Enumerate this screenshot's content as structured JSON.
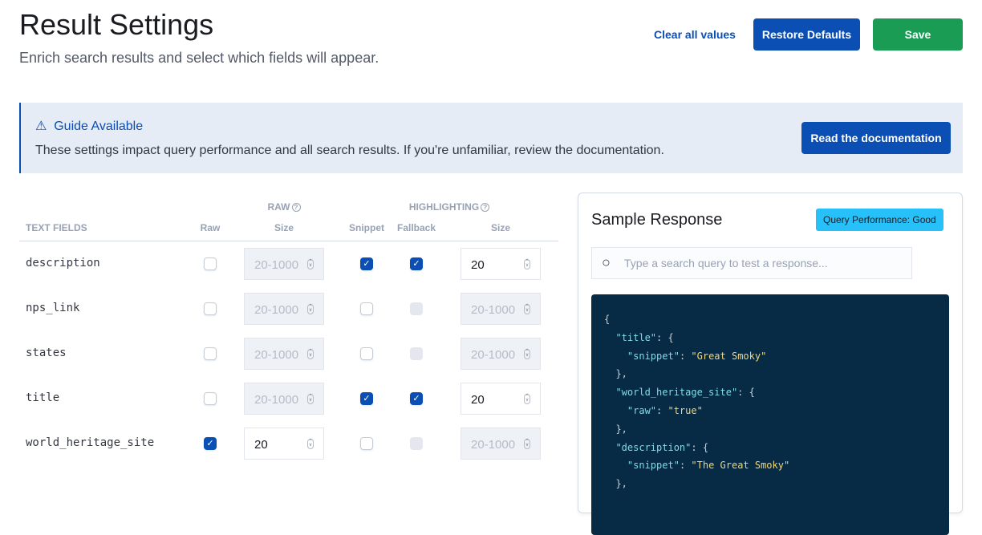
{
  "header": {
    "title": "Result Settings",
    "subtitle": "Enrich search results and select which fields will appear.",
    "clear_label": "Clear all values",
    "restore_label": "Restore Defaults",
    "save_label": "Save"
  },
  "callout": {
    "icon": "warning-icon",
    "title": "Guide Available",
    "text": "These settings impact query performance and all search results. If you're unfamiliar, review the documentation.",
    "button": "Read the documentation"
  },
  "table": {
    "group_raw": "RAW",
    "group_highlighting": "HIGHLIGHTING",
    "col_fields": "TEXT FIELDS",
    "col_raw": "Raw",
    "col_raw_size": "Size",
    "col_snippet": "Snippet",
    "col_fallback": "Fallback",
    "col_hl_size": "Size",
    "placeholder": "20-1000",
    "rows": [
      {
        "name": "description",
        "raw": false,
        "raw_size": "",
        "snippet": true,
        "fallback": true,
        "hl_size": "20"
      },
      {
        "name": "nps_link",
        "raw": false,
        "raw_size": "",
        "snippet": false,
        "fallback": false,
        "hl_size": ""
      },
      {
        "name": "states",
        "raw": false,
        "raw_size": "",
        "snippet": false,
        "fallback": false,
        "hl_size": ""
      },
      {
        "name": "title",
        "raw": false,
        "raw_size": "",
        "snippet": true,
        "fallback": true,
        "hl_size": "20"
      },
      {
        "name": "world_heritage_site",
        "raw": true,
        "raw_size": "20",
        "snippet": false,
        "fallback": false,
        "hl_size": ""
      }
    ]
  },
  "sample": {
    "title": "Sample Response",
    "badge": "Query Performance: Good",
    "search_placeholder": "Type a search query to test a response...",
    "code": [
      [
        "{",
        ""
      ],
      [
        "  ",
        [
          "\"title\"",
          ": {"
        ]
      ],
      [
        "    ",
        [
          "\"snippet\"",
          ": ",
          "\"Great Smoky\""
        ]
      ],
      [
        "  },",
        ""
      ],
      [
        "  ",
        [
          "\"world_heritage_site\"",
          ": {"
        ]
      ],
      [
        "    ",
        [
          "\"raw\"",
          ": ",
          "\"true\""
        ]
      ],
      [
        "  },",
        ""
      ],
      [
        "  ",
        [
          "\"description\"",
          ": {"
        ]
      ],
      [
        "    ",
        [
          "\"snippet\"",
          ": ",
          "\"The Great Smoky\""
        ]
      ],
      [
        "  },",
        ""
      ]
    ]
  },
  "colors": {
    "primary": "#0b4fb5",
    "save": "#1a9c55",
    "badge": "#27c0f8",
    "code_bg": "#072a45"
  }
}
